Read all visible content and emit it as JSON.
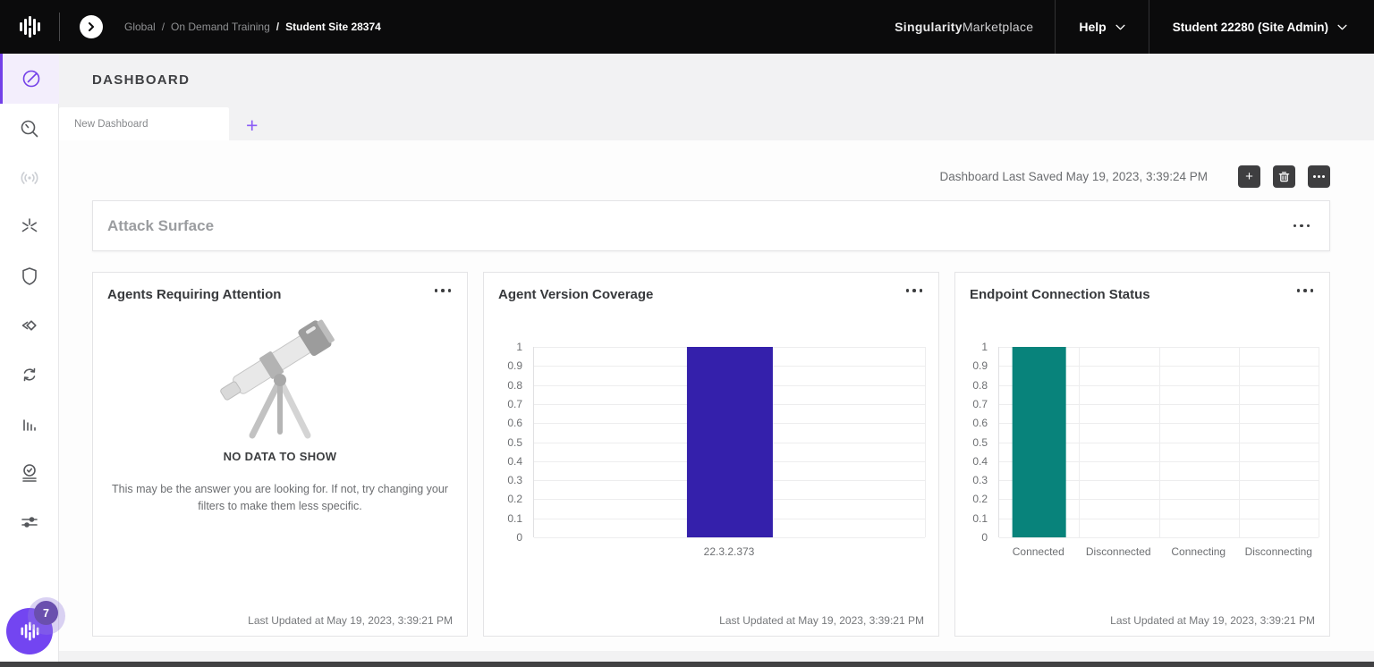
{
  "topbar": {
    "breadcrumb": {
      "root": "Global",
      "sep1": "/",
      "middle": "On Demand Training",
      "sep2": "/",
      "current": "Student Site 28374"
    },
    "brand_bold": "Singularity",
    "brand_light": "Marketplace",
    "help_label": "Help",
    "account_label": "Student 22280 (Site Admin)"
  },
  "sidebar": {
    "icons": [
      "dashboard-gauge",
      "search",
      "network-signal",
      "singularity-asterisk",
      "shield",
      "ranger-diamond",
      "sync-arrows",
      "bar-chart",
      "activity-check",
      "filter-sliders"
    ],
    "active_icon": "dashboard-gauge",
    "notification_badge": "7"
  },
  "page": {
    "title": "DASHBOARD",
    "tab_label": "New Dashboard",
    "add_tab_label": "+",
    "last_saved_label": "Dashboard Last Saved May 19, 2023, 3:39:24 PM"
  },
  "attack_surface": {
    "title": "Attack Surface"
  },
  "cards": [
    {
      "title": "Agents Requiring Attention",
      "empty_state_title": "NO DATA TO SHOW",
      "empty_state_message": "This may be the answer you are looking for. If not, try changing your filters to make them less specific.",
      "last_updated": "Last Updated at May 19, 2023, 3:39:21 PM"
    },
    {
      "title": "Agent Version Coverage",
      "last_updated": "Last Updated at May 19, 2023, 3:39:21 PM"
    },
    {
      "title": "Endpoint Connection Status",
      "last_updated": "Last Updated at May 19, 2023, 3:39:21 PM"
    }
  ],
  "chart_data": [
    {
      "type": "bar",
      "title": "Agent Version Coverage",
      "categories": [
        "22.3.2.373"
      ],
      "values": [
        1
      ],
      "ylim": [
        0,
        1
      ],
      "ytick_labels": [
        "1",
        "0.9",
        "0.8",
        "0.7",
        "0.6",
        "0.5",
        "0.4",
        "0.3",
        "0.2",
        "0.1",
        "0"
      ],
      "bar_color": "#3420ab",
      "grid": true,
      "legend": false,
      "xlabel": "",
      "ylabel": ""
    },
    {
      "type": "bar",
      "title": "Endpoint Connection Status",
      "categories": [
        "Connected",
        "Disconnected",
        "Connecting",
        "Disconnecting"
      ],
      "values": [
        1,
        0,
        0,
        0
      ],
      "ylim": [
        0,
        1
      ],
      "ytick_labels": [
        "1",
        "0.9",
        "0.8",
        "0.7",
        "0.6",
        "0.5",
        "0.4",
        "0.3",
        "0.2",
        "0.1",
        "0"
      ],
      "bar_color": "#08837b",
      "grid": true,
      "legend": false,
      "xlabel": "",
      "ylabel": ""
    }
  ],
  "colors": {
    "accent_purple": "#7340e8",
    "bar_purple": "#3420ab",
    "bar_teal": "#08837b",
    "topbar_bg": "#0b0b0c"
  }
}
